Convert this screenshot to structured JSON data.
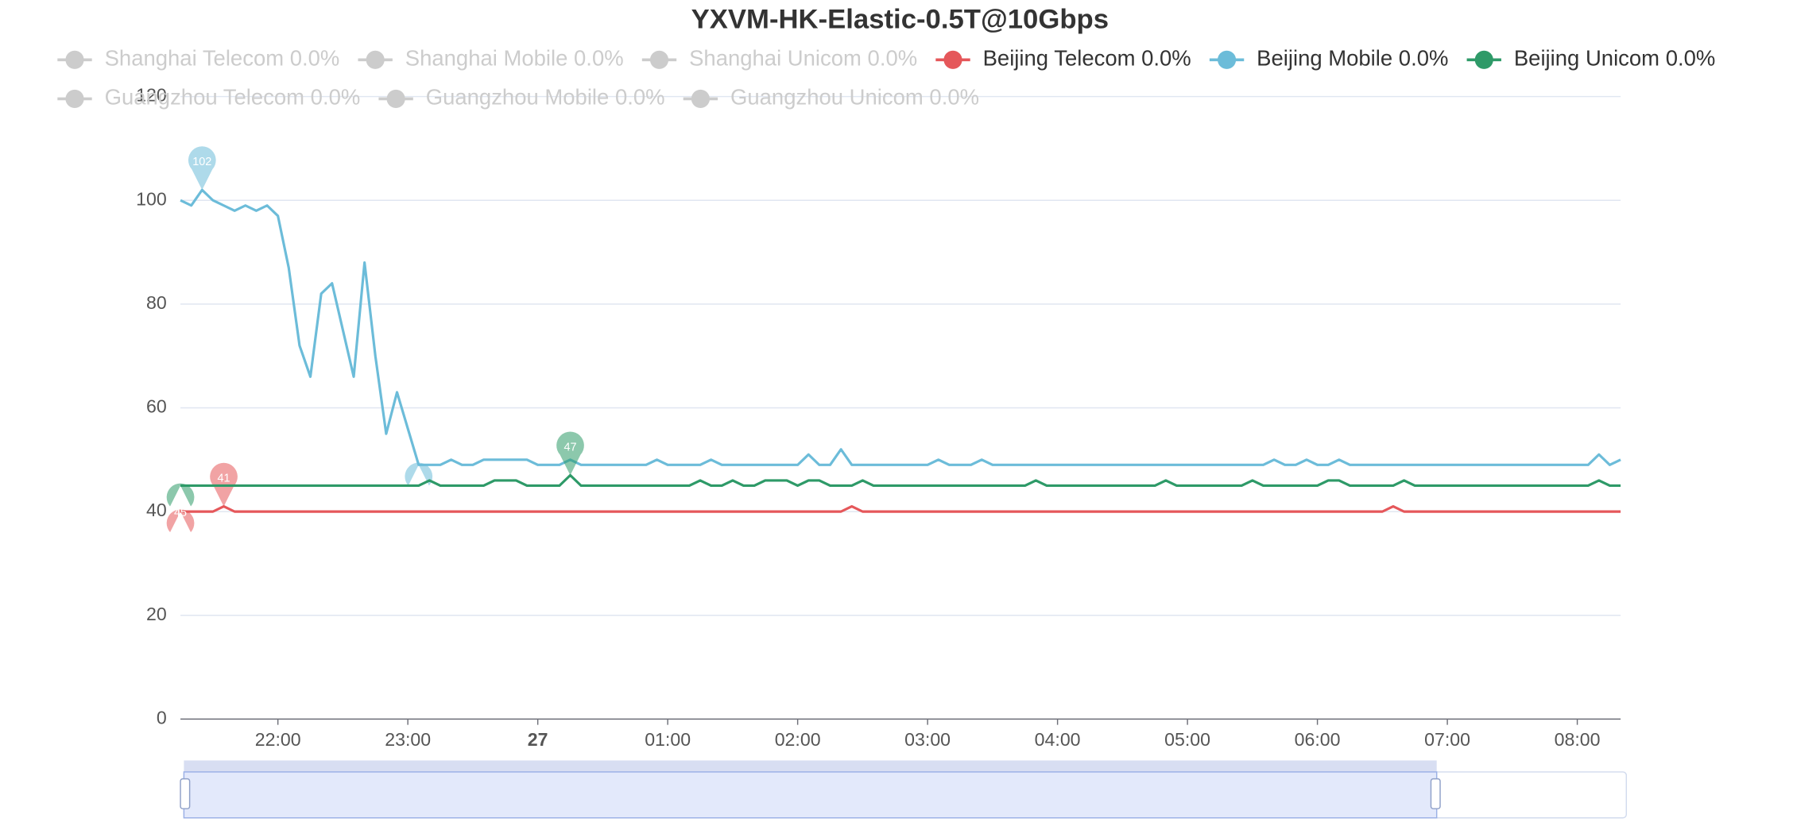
{
  "chart_data": {
    "type": "line",
    "title": "YXVM-HK-Elastic-0.5T@10Gbps",
    "categories": [
      null,
      null,
      null,
      null,
      null,
      null,
      null,
      null,
      null,
      "22:00",
      null,
      null,
      null,
      null,
      null,
      null,
      null,
      null,
      null,
      null,
      null,
      "23:00",
      null,
      null,
      null,
      null,
      null,
      null,
      null,
      null,
      null,
      null,
      null,
      "27",
      null,
      null,
      null,
      null,
      null,
      null,
      null,
      null,
      null,
      null,
      null,
      "01:00",
      null,
      null,
      null,
      null,
      null,
      null,
      null,
      null,
      null,
      null,
      null,
      "02:00",
      null,
      null,
      null,
      null,
      null,
      null,
      null,
      null,
      null,
      null,
      null,
      "03:00",
      null,
      null,
      null,
      null,
      null,
      null,
      null,
      null,
      null,
      null,
      null,
      "04:00",
      null,
      null,
      null,
      null,
      null,
      null,
      null,
      null,
      null,
      null,
      null,
      "05:00",
      null,
      null,
      null,
      null,
      null,
      null,
      null,
      null,
      null,
      null,
      null,
      "06:00",
      null,
      null,
      null,
      null,
      null,
      null,
      null,
      null,
      null,
      null,
      null,
      "07:00",
      null,
      null,
      null,
      null,
      null,
      null,
      null,
      null,
      null,
      null,
      null,
      "08:00",
      null,
      null,
      null,
      null
    ],
    "ylim": [
      0,
      120
    ],
    "yticks": [
      0,
      20,
      40,
      60,
      80,
      100,
      120
    ],
    "grid": true,
    "series": [
      {
        "name": "Shanghai Telecom 0.0%",
        "visible": false
      },
      {
        "name": "Shanghai Mobile 0.0%",
        "visible": false
      },
      {
        "name": "Shanghai Unicom 0.0%",
        "visible": false
      },
      {
        "name": "Beijing Telecom 0.0%",
        "visible": true,
        "color": "#e5575a",
        "values": [
          40,
          40,
          40,
          40,
          41,
          40,
          40,
          40,
          40,
          40,
          40,
          40,
          40,
          40,
          40,
          40,
          40,
          40,
          40,
          40,
          40,
          40,
          40,
          40,
          40,
          40,
          40,
          40,
          40,
          40,
          40,
          40,
          40,
          40,
          40,
          40,
          40,
          40,
          40,
          40,
          40,
          40,
          40,
          40,
          40,
          40,
          40,
          40,
          40,
          40,
          40,
          40,
          40,
          40,
          40,
          40,
          40,
          40,
          40,
          40,
          40,
          40,
          41,
          40,
          40,
          40,
          40,
          40,
          40,
          40,
          40,
          40,
          40,
          40,
          40,
          40,
          40,
          40,
          40,
          40,
          40,
          40,
          40,
          40,
          40,
          40,
          40,
          40,
          40,
          40,
          40,
          40,
          40,
          40,
          40,
          40,
          40,
          40,
          40,
          40,
          40,
          40,
          40,
          40,
          40,
          40,
          40,
          40,
          40,
          40,
          40,
          40,
          41,
          40,
          40,
          40,
          40,
          40,
          40,
          40,
          40,
          40,
          40,
          40,
          40,
          40,
          40,
          40,
          40,
          40,
          40,
          40,
          40,
          40
        ],
        "markers": [
          {
            "index": 4,
            "value": 41,
            "kind": "max"
          },
          {
            "index": 0,
            "value": 40,
            "kind": "min"
          }
        ]
      },
      {
        "name": "Beijing Mobile 0.0%",
        "visible": true,
        "color": "#6cbcd9",
        "values": [
          100,
          99,
          102,
          100,
          99,
          98,
          99,
          98,
          99,
          97,
          87,
          72,
          66,
          82,
          84,
          75,
          66,
          88,
          70,
          55,
          63,
          56,
          49,
          49,
          49,
          50,
          49,
          49,
          50,
          50,
          50,
          50,
          50,
          49,
          49,
          49,
          50,
          49,
          49,
          49,
          49,
          49,
          49,
          49,
          50,
          49,
          49,
          49,
          49,
          50,
          49,
          49,
          49,
          49,
          49,
          49,
          49,
          49,
          51,
          49,
          49,
          52,
          49,
          49,
          49,
          49,
          49,
          49,
          49,
          49,
          50,
          49,
          49,
          49,
          50,
          49,
          49,
          49,
          49,
          49,
          49,
          49,
          49,
          49,
          49,
          49,
          49,
          49,
          49,
          49,
          49,
          49,
          49,
          49,
          49,
          49,
          49,
          49,
          49,
          49,
          49,
          50,
          49,
          49,
          50,
          49,
          49,
          50,
          49,
          49,
          49,
          49,
          49,
          49,
          49,
          49,
          49,
          49,
          49,
          49,
          49,
          49,
          49,
          49,
          49,
          49,
          49,
          49,
          49,
          49,
          49,
          51,
          49,
          50
        ],
        "markers": [
          {
            "index": 2,
            "value": 102,
            "kind": "max"
          },
          {
            "index": 22,
            "value": 49,
            "kind": "min"
          }
        ]
      },
      {
        "name": "Beijing Unicom 0.0%",
        "visible": true,
        "color": "#2e9a68",
        "values": [
          45,
          45,
          45,
          45,
          45,
          45,
          45,
          45,
          45,
          45,
          45,
          45,
          45,
          45,
          45,
          45,
          45,
          45,
          45,
          45,
          45,
          45,
          45,
          46,
          45,
          45,
          45,
          45,
          45,
          46,
          46,
          46,
          45,
          45,
          45,
          45,
          47,
          45,
          45,
          45,
          45,
          45,
          45,
          45,
          45,
          45,
          45,
          45,
          46,
          45,
          45,
          46,
          45,
          45,
          46,
          46,
          46,
          45,
          46,
          46,
          45,
          45,
          45,
          46,
          45,
          45,
          45,
          45,
          45,
          45,
          45,
          45,
          45,
          45,
          45,
          45,
          45,
          45,
          45,
          46,
          45,
          45,
          45,
          45,
          45,
          45,
          45,
          45,
          45,
          45,
          45,
          46,
          45,
          45,
          45,
          45,
          45,
          45,
          45,
          46,
          45,
          45,
          45,
          45,
          45,
          45,
          46,
          46,
          45,
          45,
          45,
          45,
          45,
          46,
          45,
          45,
          45,
          45,
          45,
          45,
          45,
          45,
          45,
          45,
          45,
          45,
          45,
          45,
          45,
          45,
          45,
          46,
          45,
          45
        ],
        "markers": [
          {
            "index": 36,
            "value": 47,
            "kind": "max"
          },
          {
            "index": 0,
            "value": 45,
            "kind": "min"
          }
        ]
      },
      {
        "name": "Guangzhou Telecom 0.0%",
        "visible": false
      },
      {
        "name": "Guangzhou Mobile 0.0%",
        "visible": false
      },
      {
        "name": "Guangzhou Unicom 0.0%",
        "visible": false
      }
    ]
  }
}
